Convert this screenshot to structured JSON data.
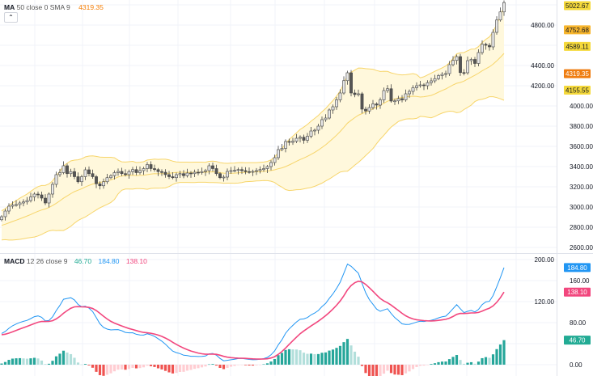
{
  "main_legend": {
    "title": "MA",
    "params": "50 close 0 SMA 9",
    "value": "4319.35",
    "value_color": "#f57c00",
    "collapse_icon": "chevron-up-icon"
  },
  "macd_legend": {
    "title": "MACD",
    "params": "12 26 close 9",
    "histogram_value": "46.70",
    "macd_value": "184.80",
    "signal_value": "138.10"
  },
  "price_axis": {
    "ticks": [
      "2600.00",
      "2800.00",
      "3000.00",
      "3200.00",
      "3400.00",
      "3600.00",
      "3800.00",
      "4000.00",
      "4200.00",
      "4400.00",
      "4800.00"
    ],
    "labels": [
      {
        "text": "5022.67",
        "value": 5022.67,
        "bg": "#f5d93b",
        "fg": "#131722"
      },
      {
        "text": "4752.68",
        "value": 4752.68,
        "bg": "#f7b52c",
        "fg": "#131722"
      },
      {
        "text": "4589.11",
        "value": 4589.11,
        "bg": "#f5d93b",
        "fg": "#131722"
      },
      {
        "text": "4319.35",
        "value": 4319.35,
        "bg": "#ef7d10",
        "fg": "#ffffff"
      },
      {
        "text": "4155.55",
        "value": 4155.55,
        "bg": "#f5d93b",
        "fg": "#131722"
      }
    ]
  },
  "macd_axis": {
    "ticks": [
      "0.00",
      "80.00",
      "120.00",
      "160.00",
      "200.00"
    ],
    "labels": [
      {
        "text": "184.80",
        "value": 184.8,
        "bg": "#2196f3",
        "fg": "#ffffff"
      },
      {
        "text": "138.10",
        "value": 138.1,
        "bg": "#f2477e",
        "fg": "#ffffff"
      },
      {
        "text": "46.70",
        "value": 46.7,
        "bg": "#22ab94",
        "fg": "#ffffff"
      }
    ]
  },
  "colors": {
    "ma": "#f7a35c",
    "bands": "#f7d56a",
    "band_fill": "#fff8dc",
    "macd": "#2196f3",
    "signal": "#f2477e",
    "hist_up_strong": "#26a69a",
    "hist_up_weak": "#b2dfdb",
    "hist_down_strong": "#ef5350",
    "hist_down_weak": "#ffcdd2",
    "candle_up": "#e8e8e8",
    "candle_down": "#555555"
  },
  "chart_data": [
    {
      "type": "candlestick",
      "title": "",
      "ylim": [
        2600,
        5100
      ],
      "grid": true,
      "close": [
        2904,
        2960,
        3008,
        3020,
        3024,
        3040,
        3050,
        3064,
        3100,
        3128,
        3120,
        3088,
        3040,
        3128,
        3224,
        3320,
        3340,
        3408,
        3330,
        3350,
        3300,
        3250,
        3300,
        3368,
        3330,
        3300,
        3230,
        3210,
        3250,
        3290,
        3310,
        3340,
        3352,
        3330,
        3320,
        3350,
        3370,
        3340,
        3360,
        3380,
        3420,
        3380,
        3370,
        3350,
        3344,
        3320,
        3300,
        3290,
        3320,
        3330,
        3310,
        3336,
        3330,
        3344,
        3340,
        3350,
        3360,
        3408,
        3380,
        3330,
        3290,
        3296,
        3352,
        3360,
        3362,
        3370,
        3360,
        3350,
        3348,
        3352,
        3360,
        3370,
        3380,
        3400,
        3440,
        3488,
        3568,
        3580,
        3648,
        3640,
        3650,
        3680,
        3690,
        3660,
        3700,
        3752,
        3760,
        3800,
        3864,
        3880,
        3960,
        3992,
        4060,
        4128,
        4250,
        4328,
        4128,
        4112,
        4120,
        3968,
        3950,
        3984,
        4020,
        4008,
        4060,
        4152,
        4170,
        4048,
        4050,
        4072,
        4060,
        4120,
        4144,
        4180,
        4200,
        4208,
        4200,
        4230,
        4248,
        4270,
        4300,
        4312,
        4320,
        4408,
        4450,
        4488,
        4330,
        4328,
        4448,
        4460,
        4420,
        4528,
        4610,
        4600,
        4584,
        4728,
        4850,
        4930,
        5022.67
      ]
    },
    {
      "type": "macd",
      "ylim": [
        -20,
        210
      ],
      "last": {
        "histogram": 46.7,
        "macd": 184.8,
        "signal": 138.1
      }
    }
  ]
}
